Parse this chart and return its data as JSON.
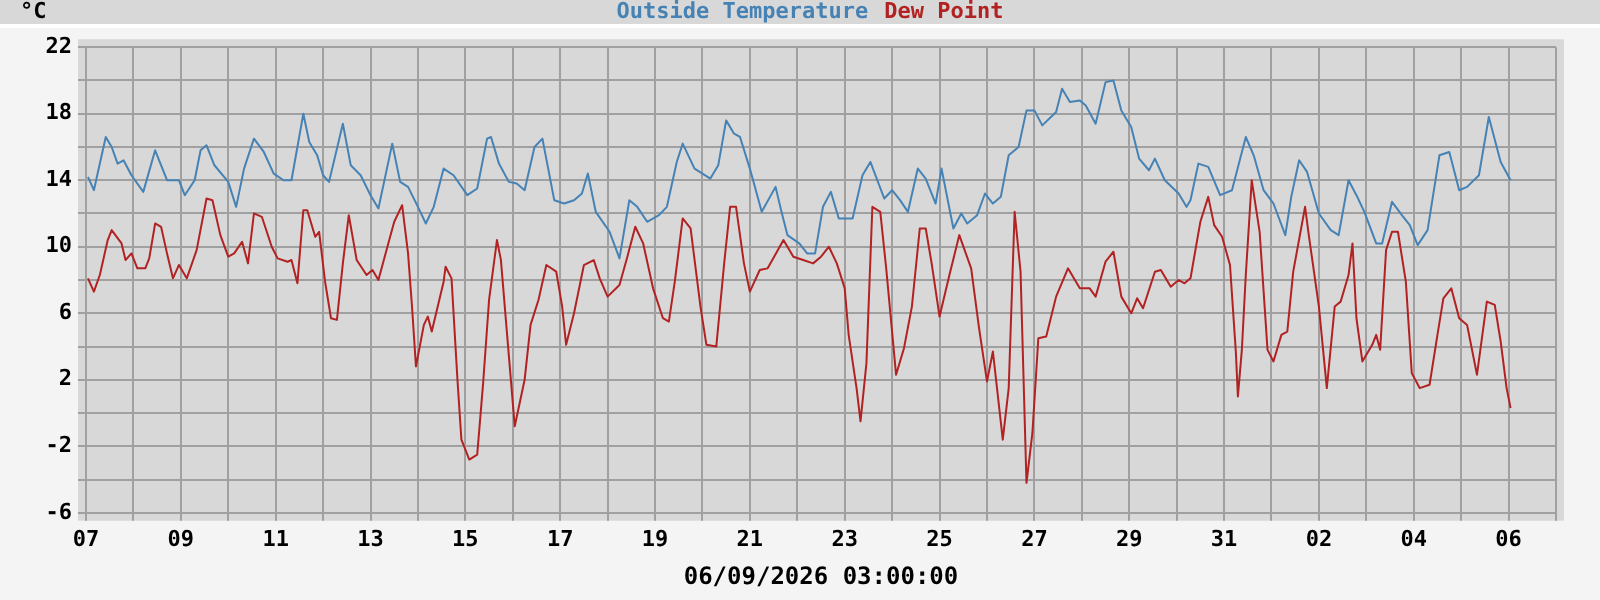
{
  "chart_data": {
    "type": "line",
    "ylabel": "°C",
    "xlabel": "06/09/2026 03:00:00",
    "legend": "top",
    "grid": true,
    "marker": "none",
    "line_style": "solid",
    "xlim": [
      "2026-05-07",
      "2026-06-07"
    ],
    "xticks": [
      {
        "value": "2026-05-07",
        "label": "07"
      },
      {
        "value": "2026-05-08",
        "label": null
      },
      {
        "value": "2026-05-09",
        "label": "09"
      },
      {
        "value": "2026-05-10",
        "label": null
      },
      {
        "value": "2026-05-11",
        "label": "11"
      },
      {
        "value": "2026-05-12",
        "label": null
      },
      {
        "value": "2026-05-13",
        "label": "13"
      },
      {
        "value": "2026-05-14",
        "label": null
      },
      {
        "value": "2026-05-15",
        "label": "15"
      },
      {
        "value": "2026-05-16",
        "label": null
      },
      {
        "value": "2026-05-17",
        "label": "17"
      },
      {
        "value": "2026-05-18",
        "label": null
      },
      {
        "value": "2026-05-19",
        "label": "19"
      },
      {
        "value": "2026-05-20",
        "label": null
      },
      {
        "value": "2026-05-21",
        "label": "21"
      },
      {
        "value": "2026-05-22",
        "label": null
      },
      {
        "value": "2026-05-23",
        "label": "23"
      },
      {
        "value": "2026-05-24",
        "label": null
      },
      {
        "value": "2026-05-25",
        "label": "25"
      },
      {
        "value": "2026-05-26",
        "label": null
      },
      {
        "value": "2026-05-27",
        "label": "27"
      },
      {
        "value": "2026-05-28",
        "label": null
      },
      {
        "value": "2026-05-29",
        "label": "29"
      },
      {
        "value": "2026-05-30",
        "label": null
      },
      {
        "value": "2026-05-31",
        "label": "31"
      },
      {
        "value": "2026-06-01",
        "label": null
      },
      {
        "value": "2026-06-02",
        "label": "02"
      },
      {
        "value": "2026-06-03",
        "label": null
      },
      {
        "value": "2026-06-04",
        "label": "04"
      },
      {
        "value": "2026-06-05",
        "label": null
      },
      {
        "value": "2026-06-06",
        "label": "06"
      },
      {
        "value": "2026-06-07",
        "label": null
      }
    ],
    "ylim": [
      -6,
      22
    ],
    "yticks": [
      -6,
      {
        "value": -4,
        "label": null
      },
      -2,
      {
        "value": 0,
        "label": null
      },
      2,
      {
        "value": 4,
        "label": null
      },
      6,
      {
        "value": 8,
        "label": null
      },
      10,
      {
        "value": 12,
        "label": null
      },
      14,
      {
        "value": 16,
        "label": null
      },
      18,
      {
        "value": 20,
        "label": null
      },
      22
    ],
    "series": [
      {
        "name": "Outside Temperature",
        "color": "#4682b4",
        "x": [
          "2026-05-07T01:00",
          "2026-05-07T04:00",
          "2026-05-07T10:00",
          "2026-05-07T13:00",
          "2026-05-07T16:00",
          "2026-05-07T19:00",
          "2026-05-07T23:00",
          "2026-05-08T05:00",
          "2026-05-08T11:00",
          "2026-05-08T17:00",
          "2026-05-08T23:00",
          "2026-05-09T02:00",
          "2026-05-09T07:00",
          "2026-05-09T10:00",
          "2026-05-09T13:00",
          "2026-05-09T17:00",
          "2026-05-10T00:00",
          "2026-05-10T04:00",
          "2026-05-10T08:00",
          "2026-05-10T13:00",
          "2026-05-10T18:00",
          "2026-05-10T23:00",
          "2026-05-11T04:00",
          "2026-05-11T08:00",
          "2026-05-11T14:00",
          "2026-05-11T17:00",
          "2026-05-11T21:00",
          "2026-05-12T00:00",
          "2026-05-12T03:00",
          "2026-05-12T10:00",
          "2026-05-12T14:00",
          "2026-05-12T19:00",
          "2026-05-13T00:00",
          "2026-05-13T04:00",
          "2026-05-13T11:00",
          "2026-05-13T15:00",
          "2026-05-13T19:00",
          "2026-05-14T00:00",
          "2026-05-14T04:00",
          "2026-05-14T08:00",
          "2026-05-14T13:00",
          "2026-05-14T18:00",
          "2026-05-15T01:00",
          "2026-05-15T06:00",
          "2026-05-15T11:00",
          "2026-05-15T13:00",
          "2026-05-15T17:00",
          "2026-05-15T22:00",
          "2026-05-16T02:00",
          "2026-05-16T06:00",
          "2026-05-16T11:00",
          "2026-05-16T15:00",
          "2026-05-16T21:00",
          "2026-05-17T02:00",
          "2026-05-17T07:00",
          "2026-05-17T11:00",
          "2026-05-17T14:00",
          "2026-05-17T18:00",
          "2026-05-18T01:00",
          "2026-05-18T06:00",
          "2026-05-18T11:00",
          "2026-05-18T15:00",
          "2026-05-18T20:00",
          "2026-05-19T02:00",
          "2026-05-19T06:00",
          "2026-05-19T11:00",
          "2026-05-19T14:00",
          "2026-05-19T20:00",
          "2026-05-20T04:00",
          "2026-05-20T08:00",
          "2026-05-20T12:00",
          "2026-05-20T16:00",
          "2026-05-20T19:00",
          "2026-05-21T00:00",
          "2026-05-21T06:00",
          "2026-05-21T13:00",
          "2026-05-21T16:00",
          "2026-05-21T19:00",
          "2026-05-22T01:00",
          "2026-05-22T05:00",
          "2026-05-22T09:00",
          "2026-05-22T13:00",
          "2026-05-22T17:00",
          "2026-05-22T21:00",
          "2026-05-23T04:00",
          "2026-05-23T09:00",
          "2026-05-23T13:00",
          "2026-05-23T20:00",
          "2026-05-24T00:00",
          "2026-05-24T04:00",
          "2026-05-24T08:00",
          "2026-05-24T13:00",
          "2026-05-24T17:00",
          "2026-05-24T22:00",
          "2026-05-25T01:00",
          "2026-05-25T07:00",
          "2026-05-25T11:00",
          "2026-05-25T14:00",
          "2026-05-25T19:00",
          "2026-05-25T23:00",
          "2026-05-26T03:00",
          "2026-05-26T07:00",
          "2026-05-26T11:00",
          "2026-05-26T16:00",
          "2026-05-26T20:00",
          "2026-05-27T00:00",
          "2026-05-27T04:00",
          "2026-05-27T11:00",
          "2026-05-27T14:00",
          "2026-05-27T18:00",
          "2026-05-27T23:00",
          "2026-05-28T02:00",
          "2026-05-28T07:00",
          "2026-05-28T12:00",
          "2026-05-28T16:00",
          "2026-05-28T20:00",
          "2026-05-29T01:00",
          "2026-05-29T05:00",
          "2026-05-29T10:00",
          "2026-05-29T13:00",
          "2026-05-29T18:00",
          "2026-05-30T01:00",
          "2026-05-30T05:00",
          "2026-05-30T07:00",
          "2026-05-30T11:00",
          "2026-05-30T16:00",
          "2026-05-30T22:00",
          "2026-05-31T04:00",
          "2026-05-31T11:00",
          "2026-05-31T15:00",
          "2026-05-31T20:00",
          "2026-06-01T01:00",
          "2026-06-01T07:00",
          "2026-06-01T10:00",
          "2026-06-01T14:00",
          "2026-06-01T18:00",
          "2026-06-02T00:00",
          "2026-06-02T06:00",
          "2026-06-02T10:00",
          "2026-06-02T15:00",
          "2026-06-02T19:00",
          "2026-06-02T23:00",
          "2026-06-03T05:00",
          "2026-06-03T08:00",
          "2026-06-03T13:00",
          "2026-06-03T18:00",
          "2026-06-03T22:00",
          "2026-06-04T02:00",
          "2026-06-04T07:00",
          "2026-06-04T13:00",
          "2026-06-04T18:00",
          "2026-06-04T23:00",
          "2026-06-05T03:00",
          "2026-06-05T09:00",
          "2026-06-05T14:00",
          "2026-06-05T20:00",
          "2026-06-06T01:00"
        ],
        "values": [
          14.2,
          13.4,
          16.6,
          16.0,
          15.0,
          15.2,
          14.3,
          13.3,
          15.8,
          14.0,
          14.0,
          13.1,
          14.0,
          15.8,
          16.1,
          14.9,
          13.9,
          12.4,
          14.7,
          16.5,
          15.7,
          14.4,
          14.0,
          14.0,
          18.0,
          16.3,
          15.5,
          14.3,
          13.9,
          17.4,
          14.9,
          14.3,
          13.1,
          12.3,
          16.2,
          13.9,
          13.6,
          12.4,
          11.4,
          12.4,
          14.7,
          14.3,
          13.1,
          13.5,
          16.5,
          16.6,
          15.0,
          13.9,
          13.8,
          13.4,
          16.0,
          16.5,
          12.8,
          12.6,
          12.8,
          13.2,
          14.4,
          12.1,
          10.9,
          9.3,
          12.8,
          12.4,
          11.5,
          11.9,
          12.4,
          15.1,
          16.2,
          14.7,
          14.1,
          14.9,
          17.6,
          16.8,
          16.6,
          14.7,
          12.1,
          13.6,
          12.1,
          10.7,
          10.2,
          9.6,
          9.6,
          12.4,
          13.3,
          11.7,
          11.7,
          14.3,
          15.1,
          12.9,
          13.4,
          12.8,
          12.1,
          14.7,
          14.1,
          12.6,
          14.7,
          11.1,
          12.0,
          11.4,
          11.9,
          13.2,
          12.6,
          13.0,
          15.5,
          16.0,
          18.2,
          18.2,
          17.3,
          18.1,
          19.5,
          18.7,
          18.8,
          18.5,
          17.4,
          19.9,
          20.0,
          18.2,
          17.2,
          15.3,
          14.6,
          15.3,
          14.0,
          13.2,
          12.4,
          12.8,
          15.0,
          14.8,
          13.1,
          13.4,
          16.6,
          15.5,
          13.4,
          12.6,
          10.7,
          13.0,
          15.2,
          14.5,
          12.0,
          11.0,
          10.7,
          14.0,
          13.1,
          12.1,
          10.2,
          10.2,
          12.7,
          11.9,
          11.3,
          10.1,
          11.0,
          15.5,
          15.7,
          13.4,
          13.6,
          14.3,
          17.8,
          15.1,
          14.0
        ]
      },
      {
        "name": "Dew Point",
        "color": "#b22222",
        "x": [
          "2026-05-07T01:00",
          "2026-05-07T04:00",
          "2026-05-07T07:00",
          "2026-05-07T11:00",
          "2026-05-07T13:00",
          "2026-05-07T18:00",
          "2026-05-07T20:00",
          "2026-05-07T23:00",
          "2026-05-08T02:00",
          "2026-05-08T06:00",
          "2026-05-08T08:00",
          "2026-05-08T11:00",
          "2026-05-08T14:00",
          "2026-05-08T17:00",
          "2026-05-08T20:00",
          "2026-05-08T23:00",
          "2026-05-09T03:00",
          "2026-05-09T08:00",
          "2026-05-09T13:00",
          "2026-05-09T16:00",
          "2026-05-09T20:00",
          "2026-05-10T00:00",
          "2026-05-10T03:00",
          "2026-05-10T07:00",
          "2026-05-10T10:00",
          "2026-05-10T13:00",
          "2026-05-10T17:00",
          "2026-05-10T22:00",
          "2026-05-11T01:00",
          "2026-05-11T06:00",
          "2026-05-11T08:00",
          "2026-05-11T11:00",
          "2026-05-11T14:00",
          "2026-05-11T16:00",
          "2026-05-11T20:00",
          "2026-05-11T22:00",
          "2026-05-12T01:00",
          "2026-05-12T04:00",
          "2026-05-12T07:00",
          "2026-05-12T10:00",
          "2026-05-12T13:00",
          "2026-05-12T17:00",
          "2026-05-12T22:00",
          "2026-05-13T01:00",
          "2026-05-13T04:00",
          "2026-05-13T09:00",
          "2026-05-13T12:00",
          "2026-05-13T16:00",
          "2026-05-13T19:00",
          "2026-05-13T21:00",
          "2026-05-13T23:00",
          "2026-05-14T03:00",
          "2026-05-14T05:00",
          "2026-05-14T07:00",
          "2026-05-14T13:00",
          "2026-05-14T14:00",
          "2026-05-14T17:00",
          "2026-05-14T20:00",
          "2026-05-14T22:00",
          "2026-05-15T02:00",
          "2026-05-15T06:00",
          "2026-05-15T09:00",
          "2026-05-15T12:00",
          "2026-05-15T16:00",
          "2026-05-15T18:00",
          "2026-05-15T21:00",
          "2026-05-16T01:00",
          "2026-05-16T06:00",
          "2026-05-16T09:00",
          "2026-05-16T13:00",
          "2026-05-16T17:00",
          "2026-05-16T22:00",
          "2026-05-17T01:00",
          "2026-05-17T03:00",
          "2026-05-17T07:00",
          "2026-05-17T12:00",
          "2026-05-17T17:00",
          "2026-05-17T20:00",
          "2026-05-18T00:00",
          "2026-05-18T06:00",
          "2026-05-18T10:00",
          "2026-05-18T14:00",
          "2026-05-18T18:00",
          "2026-05-18T23:00",
          "2026-05-19T04:00",
          "2026-05-19T07:00",
          "2026-05-19T10:00",
          "2026-05-19T14:00",
          "2026-05-19T18:00",
          "2026-05-19T23:00",
          "2026-05-20T02:00",
          "2026-05-20T07:00",
          "2026-05-20T11:00",
          "2026-05-20T14:00",
          "2026-05-20T17:00",
          "2026-05-20T21:00",
          "2026-05-21T00:00",
          "2026-05-21T05:00",
          "2026-05-21T09:00",
          "2026-05-21T17:00",
          "2026-05-21T22:00",
          "2026-05-22T03:00",
          "2026-05-22T08:00",
          "2026-05-22T12:00",
          "2026-05-22T16:00",
          "2026-05-22T20:00",
          "2026-05-23T00:00",
          "2026-05-23T02:00",
          "2026-05-23T06:00",
          "2026-05-23T08:00",
          "2026-05-23T11:00",
          "2026-05-23T14:00",
          "2026-05-23T18:00",
          "2026-05-23T21:00",
          "2026-05-24T02:00",
          "2026-05-24T06:00",
          "2026-05-24T10:00",
          "2026-05-24T14:00",
          "2026-05-24T17:00",
          "2026-05-24T20:00",
          "2026-05-25T00:00",
          "2026-05-25T05:00",
          "2026-05-25T10:00",
          "2026-05-25T16:00",
          "2026-05-25T20:00",
          "2026-05-26T00:00",
          "2026-05-26T03:00",
          "2026-05-26T08:00",
          "2026-05-26T11:00",
          "2026-05-26T14:00",
          "2026-05-26T17:00",
          "2026-05-26T20:00",
          "2026-05-26T23:00",
          "2026-05-27T02:00",
          "2026-05-27T06:00",
          "2026-05-27T11:00",
          "2026-05-27T17:00",
          "2026-05-27T23:00",
          "2026-05-28T04:00",
          "2026-05-28T07:00",
          "2026-05-28T12:00",
          "2026-05-28T16:00",
          "2026-05-28T20:00",
          "2026-05-29T01:00",
          "2026-05-29T04:00",
          "2026-05-29T07:00",
          "2026-05-29T13:00",
          "2026-05-29T16:00",
          "2026-05-29T21:00",
          "2026-05-30T01:00",
          "2026-05-30T04:00",
          "2026-05-30T07:00",
          "2026-05-30T12:00",
          "2026-05-30T16:00",
          "2026-05-30T19:00",
          "2026-05-30T23:00",
          "2026-05-31T03:00",
          "2026-05-31T06:00",
          "2026-05-31T07:00",
          "2026-05-31T09:00",
          "2026-05-31T11:00",
          "2026-05-31T14:00",
          "2026-05-31T18:00",
          "2026-05-31T22:00",
          "2026-06-01T01:00",
          "2026-06-01T05:00",
          "2026-06-01T08:00",
          "2026-06-01T11:00",
          "2026-06-01T17:00",
          "2026-06-01T19:00",
          "2026-06-02T00:00",
          "2026-06-02T04:00",
          "2026-06-02T08:00",
          "2026-06-02T11:00",
          "2026-06-02T15:00",
          "2026-06-02T17:00",
          "2026-06-02T19:00",
          "2026-06-02T22:00",
          "2026-06-03T03:00",
          "2026-06-03T05:00",
          "2026-06-03T07:00",
          "2026-06-03T10:00",
          "2026-06-03T13:00",
          "2026-06-03T16:00",
          "2026-06-03T20:00",
          "2026-06-03T23:00",
          "2026-06-04T03:00",
          "2026-06-04T08:00",
          "2026-06-04T12:00",
          "2026-06-04T15:00",
          "2026-06-04T19:00",
          "2026-06-04T23:00",
          "2026-06-05T03:00",
          "2026-06-05T08:00",
          "2026-06-05T13:00",
          "2026-06-05T17:00",
          "2026-06-05T20:00",
          "2026-06-05T23:00",
          "2026-06-06T01:00"
        ],
        "values": [
          8.1,
          7.3,
          8.3,
          10.4,
          11.0,
          10.2,
          9.2,
          9.6,
          8.7,
          8.7,
          9.3,
          11.4,
          11.2,
          9.6,
          8.1,
          8.9,
          8.1,
          9.8,
          12.9,
          12.8,
          10.7,
          9.4,
          9.6,
          10.3,
          9.0,
          12.0,
          11.8,
          10.0,
          9.3,
          9.1,
          9.2,
          7.8,
          12.2,
          12.2,
          10.6,
          10.9,
          7.9,
          5.7,
          5.6,
          9.0,
          11.9,
          9.2,
          8.3,
          8.6,
          8.0,
          10.2,
          11.5,
          12.5,
          9.6,
          6.4,
          2.8,
          5.3,
          5.8,
          4.9,
          7.9,
          8.8,
          8.1,
          2.0,
          -1.6,
          -2.8,
          -2.5,
          1.8,
          6.8,
          10.4,
          9.2,
          4.9,
          -0.8,
          2.0,
          5.3,
          6.8,
          8.9,
          8.5,
          6.4,
          4.1,
          6.0,
          8.9,
          9.2,
          8.1,
          7.0,
          7.7,
          9.4,
          11.2,
          10.2,
          7.5,
          5.7,
          5.5,
          7.9,
          11.7,
          11.1,
          6.4,
          4.1,
          4.0,
          9.0,
          12.4,
          12.4,
          9.0,
          7.3,
          8.6,
          8.7,
          10.4,
          9.4,
          9.2,
          9.0,
          9.4,
          10.0,
          9.0,
          7.5,
          4.7,
          1.5,
          -0.5,
          3.0,
          12.4,
          12.1,
          8.7,
          2.3,
          3.9,
          6.4,
          11.1,
          11.1,
          9.0,
          5.8,
          8.3,
          10.7,
          8.7,
          5.1,
          1.9,
          3.7,
          -1.6,
          1.5,
          12.1,
          8.5,
          -4.2,
          -1.2,
          4.5,
          4.6,
          7.0,
          8.7,
          7.5,
          7.5,
          7.0,
          9.1,
          9.7,
          7.0,
          6.0,
          6.9,
          6.3,
          8.5,
          8.6,
          7.6,
          8.0,
          7.8,
          8.1,
          11.5,
          13.0,
          11.3,
          10.6,
          8.9,
          3.6,
          1.0,
          3.8,
          8.3,
          14.0,
          10.9,
          3.8,
          3.1,
          4.7,
          4.9,
          8.5,
          12.4,
          10.6,
          6.4,
          1.5,
          6.4,
          6.7,
          8.3,
          10.2,
          5.7,
          3.1,
          4.1,
          4.7,
          3.8,
          9.8,
          10.9,
          10.9,
          7.9,
          2.4,
          1.5,
          1.7,
          4.7,
          6.9,
          7.5,
          5.7,
          5.3,
          2.3,
          6.7,
          6.5,
          4.3,
          1.5,
          0.3
        ]
      }
    ]
  }
}
